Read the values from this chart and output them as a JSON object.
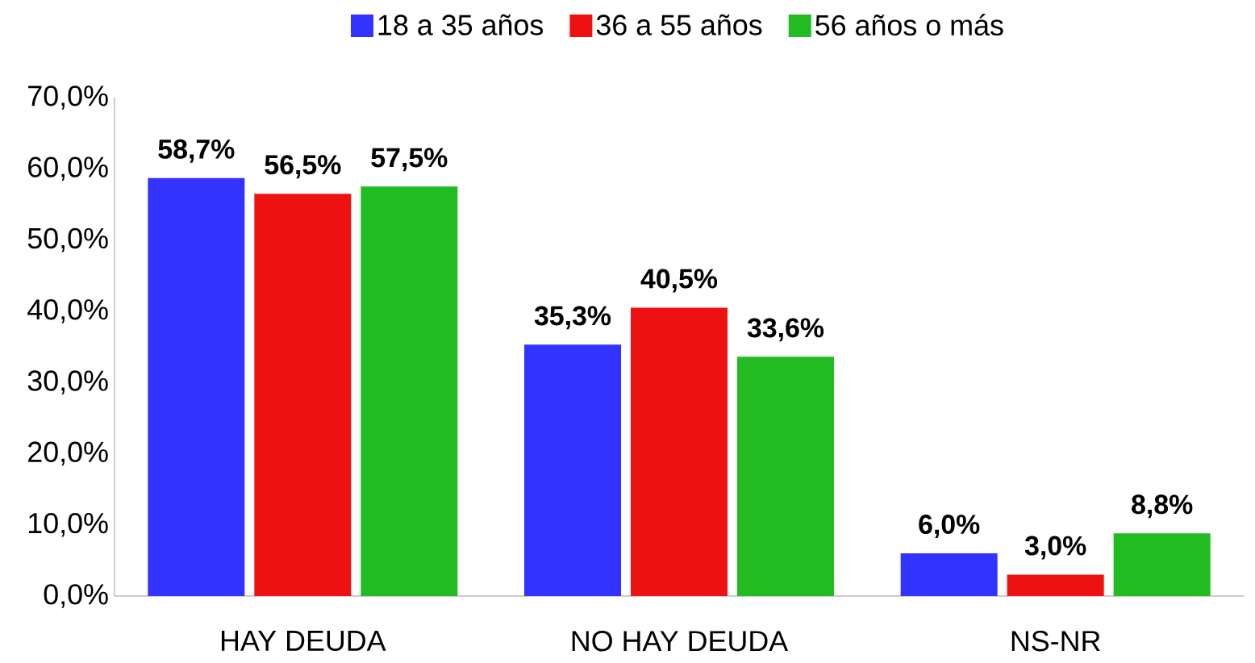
{
  "chart_data": {
    "type": "bar",
    "categories": [
      "HAY DEUDA",
      "NO HAY DEUDA",
      "NS-NR"
    ],
    "series": [
      {
        "name": "18 a 35 años",
        "color": "#3333ff",
        "values": [
          58.7,
          35.3,
          6.0
        ],
        "value_labels": [
          "58,7%",
          "35,3%",
          "6,0%"
        ]
      },
      {
        "name": "36 a 55 años",
        "color": "#ee1111",
        "values": [
          56.5,
          40.5,
          3.0
        ],
        "value_labels": [
          "56,5%",
          "40,5%",
          "3,0%"
        ]
      },
      {
        "name": "56 años o más",
        "color": "#22bb22",
        "values": [
          57.5,
          33.6,
          8.8
        ],
        "value_labels": [
          "57,5%",
          "33,6%",
          "8,8%"
        ]
      }
    ],
    "ylim": [
      0,
      70
    ],
    "yticks": [
      {
        "value": 0,
        "label": "0,0%"
      },
      {
        "value": 10,
        "label": "10,0%"
      },
      {
        "value": 20,
        "label": "20,0%"
      },
      {
        "value": 30,
        "label": "30,0%"
      },
      {
        "value": 40,
        "label": "40,0%"
      },
      {
        "value": 50,
        "label": "50,0%"
      },
      {
        "value": 60,
        "label": "60,0%"
      },
      {
        "value": 70,
        "label": "70,0%"
      }
    ],
    "legend": "top"
  }
}
